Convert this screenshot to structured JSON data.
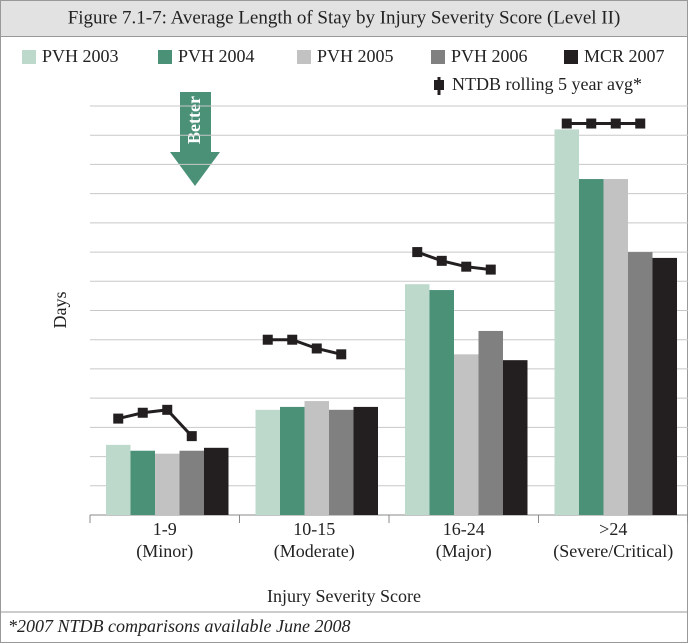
{
  "chart_data": {
    "type": "bar",
    "title": "Figure 7.1-7: Average Length of Stay by Injury Severity Score (Level II)",
    "categories": [
      [
        "1-9",
        "(Minor)"
      ],
      [
        "10-15",
        "(Moderate)"
      ],
      [
        "16-24",
        "(Major)"
      ],
      [
        ">24",
        "(Severe/Critical)"
      ]
    ],
    "series": [
      {
        "name": "PVH 2003",
        "color": "#bcd9cc",
        "values": [
          2.4,
          3.6,
          7.9,
          13.2
        ]
      },
      {
        "name": "PVH 2004",
        "color": "#4a9178",
        "values": [
          2.2,
          3.7,
          7.7,
          11.5
        ]
      },
      {
        "name": "PVH 2005",
        "color": "#c2c2c2",
        "values": [
          2.1,
          3.9,
          5.5,
          11.5
        ]
      },
      {
        "name": "PVH 2006",
        "color": "#808080",
        "values": [
          2.2,
          3.6,
          6.3,
          9.0
        ]
      },
      {
        "name": "MCR 2007",
        "color": "#231f20",
        "values": [
          2.3,
          3.7,
          5.3,
          8.8
        ]
      }
    ],
    "line_series": {
      "name": "NTDB rolling 5 year avg*",
      "color": "#231f20",
      "values": [
        [
          3.3,
          3.5,
          3.6,
          2.7
        ],
        [
          6.0,
          6.0,
          5.7,
          5.5
        ],
        [
          9.0,
          8.7,
          8.5,
          8.4
        ],
        [
          13.4,
          13.4,
          13.4,
          13.4
        ]
      ]
    },
    "ylabel": "Days",
    "xlabel": "Injury Severity Score",
    "annotation": "Better",
    "footnote": "*2007 NTDB comparisons available June 2008",
    "ylim": [
      0,
      14
    ],
    "yticks": [
      0,
      1,
      2,
      3,
      4,
      5,
      6,
      7,
      8,
      9,
      10,
      11,
      12,
      13,
      14
    ],
    "grid": true
  }
}
